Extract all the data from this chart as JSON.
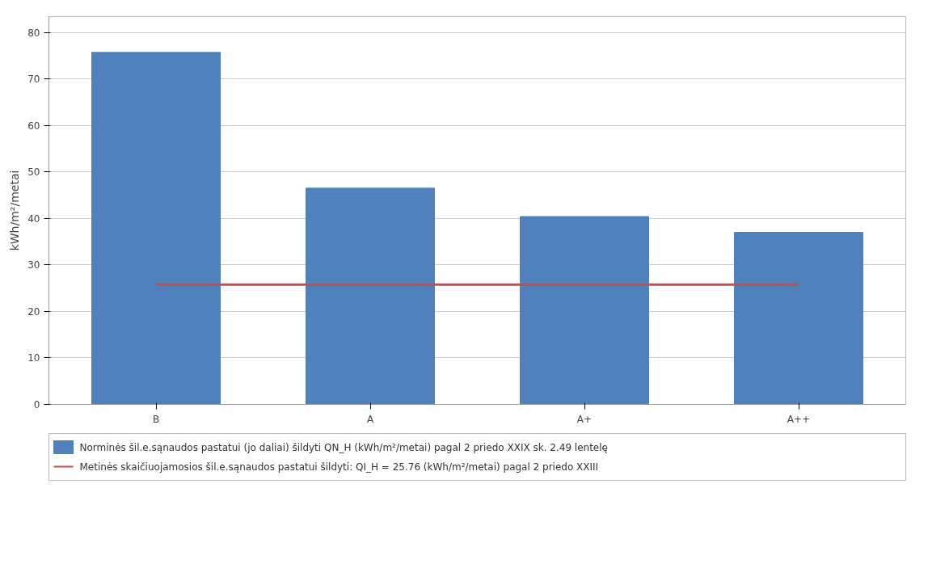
{
  "chart_data": {
    "type": "bar",
    "ylabel": "kWh/m²/metai",
    "categories": [
      "B",
      "A",
      "A+",
      "A++"
    ],
    "series": [
      {
        "name": "Norminės šil.e.sąnaudos pastatui (jo daliai) šildyti QN_H (kWh/m²/metai) pagal 2 priedo XXIX sk. 2.49 lentelę",
        "color": "#4f81bd",
        "values": [
          75.7,
          46.5,
          40.4,
          37.0
        ]
      },
      {
        "type": "line",
        "name": "Metinės skaičiuojamosios šil.e.sąnaudos pastatui šildyti: QI_H = 25.76 (kWh/m²/metai) pagal 2 priedo XXIII",
        "color": "#c0504d",
        "values": [
          25.76,
          25.76,
          25.76,
          25.76
        ]
      }
    ],
    "ylim": [
      0,
      83.4
    ],
    "yticks": [
      0,
      10,
      20,
      30,
      40,
      50,
      60,
      70,
      80
    ],
    "grid": "y",
    "legend": "bottom"
  }
}
